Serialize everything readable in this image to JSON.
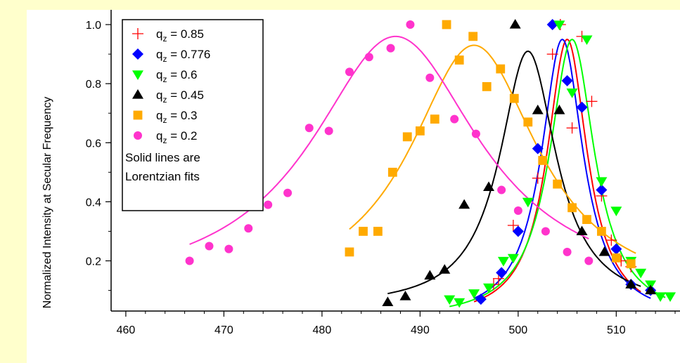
{
  "chart_data": {
    "type": "scatter",
    "ylabel": "Normalized Intensity at Secular Frequency",
    "xlabel": "",
    "xlim": [
      458.5,
      516.5
    ],
    "ylim": [
      0.03,
      1.05
    ],
    "x_ticks": [
      460,
      470,
      480,
      490,
      500,
      510
    ],
    "x_tick_labels": [
      "460",
      "470",
      "480",
      "490",
      "500",
      "510"
    ],
    "y_ticks": [
      0.2,
      0.4,
      0.6,
      0.8,
      1.0
    ],
    "y_tick_labels": [
      "0.2",
      "0.4",
      "0.6",
      "0.8",
      "1.0"
    ],
    "grid": false,
    "legend_position": "top-left",
    "legend_note": [
      "Solid lines are",
      "Lorentzian fits"
    ],
    "series": [
      {
        "name": "0.85",
        "legend_prefix": "q",
        "legend_sub": "z",
        "legend_suffix": " = 0.85",
        "marker": "plus",
        "color": "#ff0000",
        "x": [
          497.5,
          498,
          499.5,
          502,
          503.5,
          504.3,
          505.5,
          506.5,
          507.5,
          508.5,
          509.5,
          510.5,
          511.5
        ],
        "y": [
          0.12,
          0.14,
          0.32,
          0.48,
          0.9,
          1.0,
          0.65,
          0.96,
          0.74,
          0.42,
          0.27,
          0.2,
          0.18
        ],
        "fit": {
          "center": 505.0,
          "fwhm": 5.0,
          "amplitude": 0.95,
          "offset": 0.0,
          "x_range": [
            495.5,
            512.5
          ]
        }
      },
      {
        "name": "0.776",
        "legend_prefix": "q",
        "legend_sub": "z",
        "legend_suffix": " = 0.776",
        "marker": "diamond",
        "color": "#0000ff",
        "x": [
          496.2,
          498.3,
          500,
          502,
          503.5,
          505,
          506.5,
          508.5,
          510,
          511.5,
          513.5
        ],
        "y": [
          0.07,
          0.16,
          0.3,
          0.58,
          1.0,
          0.81,
          0.72,
          0.44,
          0.24,
          0.12,
          0.1
        ],
        "fit": {
          "center": 504.5,
          "fwhm": 5.2,
          "amplitude": 0.95,
          "offset": 0.0,
          "x_range": [
            495.5,
            513.5
          ]
        }
      },
      {
        "name": "0.6",
        "legend_prefix": "q",
        "legend_sub": "z",
        "legend_suffix": " = 0.6",
        "marker": "triangle-down",
        "color": "#00ff00",
        "x": [
          493,
          494,
          495.5,
          497,
          498.5,
          499.5,
          501,
          504.2,
          505.5,
          507,
          508.5,
          510,
          511.5,
          512.5,
          513.5,
          514.5,
          515.5
        ],
        "y": [
          0.07,
          0.06,
          0.09,
          0.11,
          0.2,
          0.21,
          0.4,
          1.0,
          0.77,
          0.95,
          0.47,
          0.37,
          0.2,
          0.16,
          0.12,
          0.08,
          0.08
        ],
        "fit": {
          "center": 505.5,
          "fwhm": 5.6,
          "amplitude": 0.95,
          "offset": 0.0,
          "x_range": [
            493,
            515
          ]
        }
      },
      {
        "name": "0.45",
        "legend_prefix": "q",
        "legend_sub": "z",
        "legend_suffix": " = 0.45",
        "marker": "triangle-up",
        "color": "#000000",
        "x": [
          486.7,
          488.5,
          491,
          492.5,
          494.5,
          497,
          499.7,
          502,
          504.2,
          506.5,
          508.8,
          511.5,
          513.5
        ],
        "y": [
          0.06,
          0.08,
          0.15,
          0.17,
          0.39,
          0.45,
          1.0,
          0.71,
          0.71,
          0.3,
          0.23,
          0.12,
          0.1
        ],
        "fit": {
          "center": 501.0,
          "fwhm": 7.0,
          "amplitude": 0.87,
          "offset": 0.04,
          "x_range": [
            486.7,
            512.5
          ]
        }
      },
      {
        "name": "0.3",
        "legend_prefix": "q",
        "legend_sub": "z",
        "legend_suffix": " = 0.3",
        "marker": "square",
        "color": "#ffaa00",
        "x": [
          482.8,
          484.2,
          485.7,
          487.2,
          488.7,
          490,
          491.5,
          492.7,
          494,
          495.4,
          496.8,
          498.2,
          499.6,
          501,
          502.5,
          504,
          505.5,
          507,
          508.5,
          510,
          511.5
        ],
        "y": [
          0.23,
          0.3,
          0.3,
          0.5,
          0.62,
          0.64,
          0.68,
          1.0,
          0.88,
          0.96,
          0.79,
          0.85,
          0.75,
          0.67,
          0.54,
          0.46,
          0.38,
          0.34,
          0.3,
          0.21,
          0.19
        ],
        "fit": {
          "center": 495.5,
          "fwhm": 16.0,
          "amplitude": 0.87,
          "offset": 0.06,
          "x_range": [
            482.8,
            512
          ]
        }
      },
      {
        "name": "0.2",
        "legend_prefix": "q",
        "legend_sub": "z",
        "legend_suffix": " = 0.2",
        "marker": "circle",
        "color": "#ff33cc",
        "x": [
          466.5,
          468.5,
          470.5,
          472.5,
          474.5,
          476.5,
          478.7,
          480.7,
          482.8,
          484.8,
          487,
          489,
          491,
          493.5,
          495.7,
          498.3,
          500,
          502.8,
          505,
          507.2
        ],
        "y": [
          0.2,
          0.25,
          0.24,
          0.31,
          0.39,
          0.43,
          0.65,
          0.64,
          0.84,
          0.89,
          0.92,
          1.0,
          0.82,
          0.68,
          0.63,
          0.44,
          0.37,
          0.3,
          0.23,
          0.2
        ],
        "fit": {
          "center": 487.5,
          "fwhm": 21.0,
          "amplitude": 0.88,
          "offset": 0.08,
          "x_range": [
            466.5,
            507.2
          ]
        }
      }
    ]
  }
}
